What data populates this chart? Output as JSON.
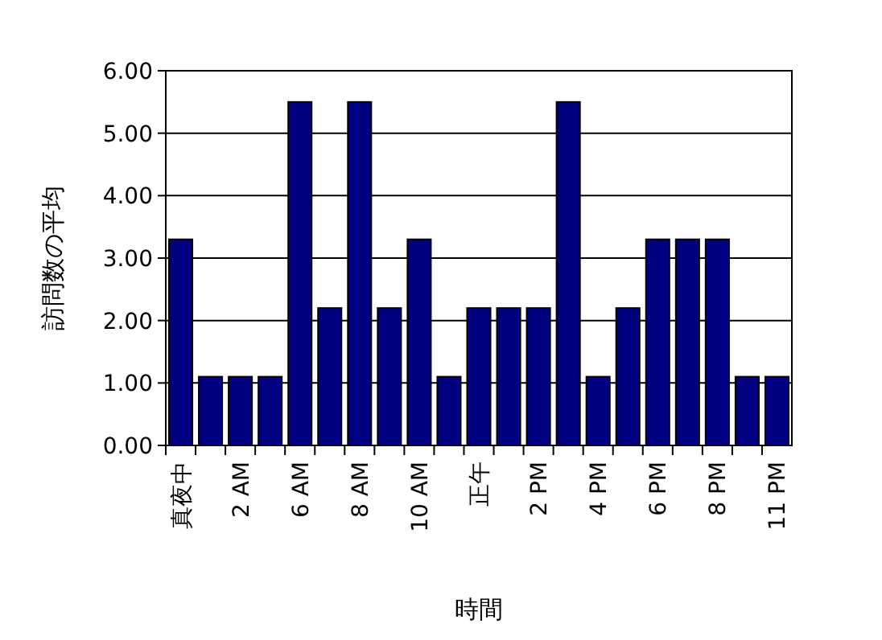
{
  "chart_data": {
    "type": "bar",
    "xlabel": "時間",
    "ylabel": "訪問数の平均",
    "categories": [
      "真夜中",
      null,
      "2 AM",
      null,
      "6 AM",
      null,
      "8 AM",
      null,
      "10 AM",
      null,
      "正午",
      null,
      "2 PM",
      null,
      "4 PM",
      null,
      "6 PM",
      null,
      "8 PM",
      null,
      "11 PM"
    ],
    "values": [
      3.3,
      1.1,
      1.1,
      1.1,
      5.5,
      2.2,
      5.5,
      2.2,
      3.3,
      1.1,
      2.2,
      2.2,
      2.2,
      5.5,
      1.1,
      2.2,
      3.3,
      3.3,
      3.3,
      1.1,
      1.1
    ],
    "color": "#000080",
    "ylim": [
      0,
      6
    ],
    "yticks": [
      {
        "value": 0,
        "label": "0.00"
      },
      {
        "value": 1,
        "label": "1.00"
      },
      {
        "value": 2,
        "label": "2.00"
      },
      {
        "value": 3,
        "label": "3.00"
      },
      {
        "value": 4,
        "label": "4.00"
      },
      {
        "value": 5,
        "label": "5.00"
      },
      {
        "value": 6,
        "label": "6.00"
      }
    ],
    "grid": "y"
  }
}
